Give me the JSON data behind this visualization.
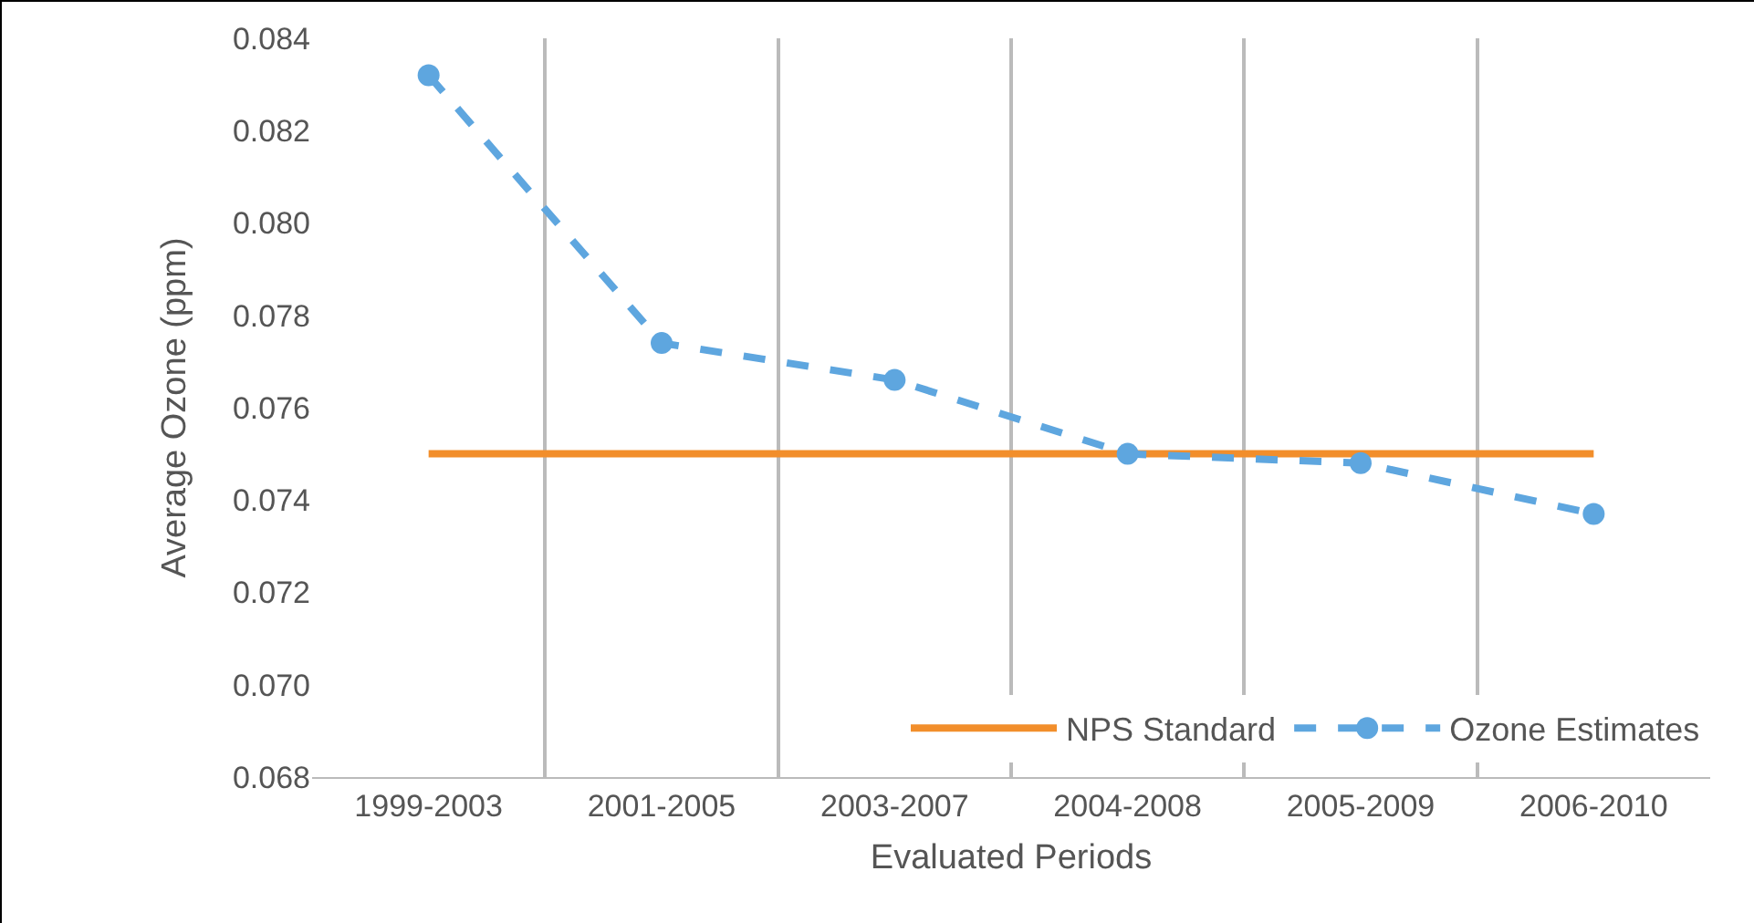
{
  "chart_data": {
    "type": "line",
    "xlabel": "Evaluated Periods",
    "ylabel": "Average Ozone (ppm)",
    "categories": [
      "1999-2003",
      "2001-2005",
      "2003-2007",
      "2004-2008",
      "2005-2009",
      "2006-2010"
    ],
    "series": [
      {
        "name": "NPS Standard",
        "color": "#f28e2b",
        "values": [
          0.075,
          0.075,
          0.075,
          0.075,
          0.075,
          0.075
        ],
        "marker": "none",
        "line_style": "solid"
      },
      {
        "name": "Ozone Estimates",
        "color": "#5ea6df",
        "values": [
          0.0832,
          0.0774,
          0.0766,
          0.075,
          0.0748,
          0.0737
        ],
        "marker": "circle",
        "line_style": "dashed"
      }
    ],
    "ylim": [
      0.068,
      0.084
    ],
    "yticks": [
      {
        "value": 0.068,
        "label": "0.068"
      },
      {
        "value": 0.07,
        "label": "0.070"
      },
      {
        "value": 0.072,
        "label": "0.072"
      },
      {
        "value": 0.074,
        "label": "0.074"
      },
      {
        "value": 0.076,
        "label": "0.076"
      },
      {
        "value": 0.078,
        "label": "0.078"
      },
      {
        "value": 0.08,
        "label": "0.080"
      },
      {
        "value": 0.082,
        "label": "0.082"
      },
      {
        "value": 0.084,
        "label": "0.084"
      }
    ],
    "grid": "x",
    "legend": "bottom right"
  }
}
